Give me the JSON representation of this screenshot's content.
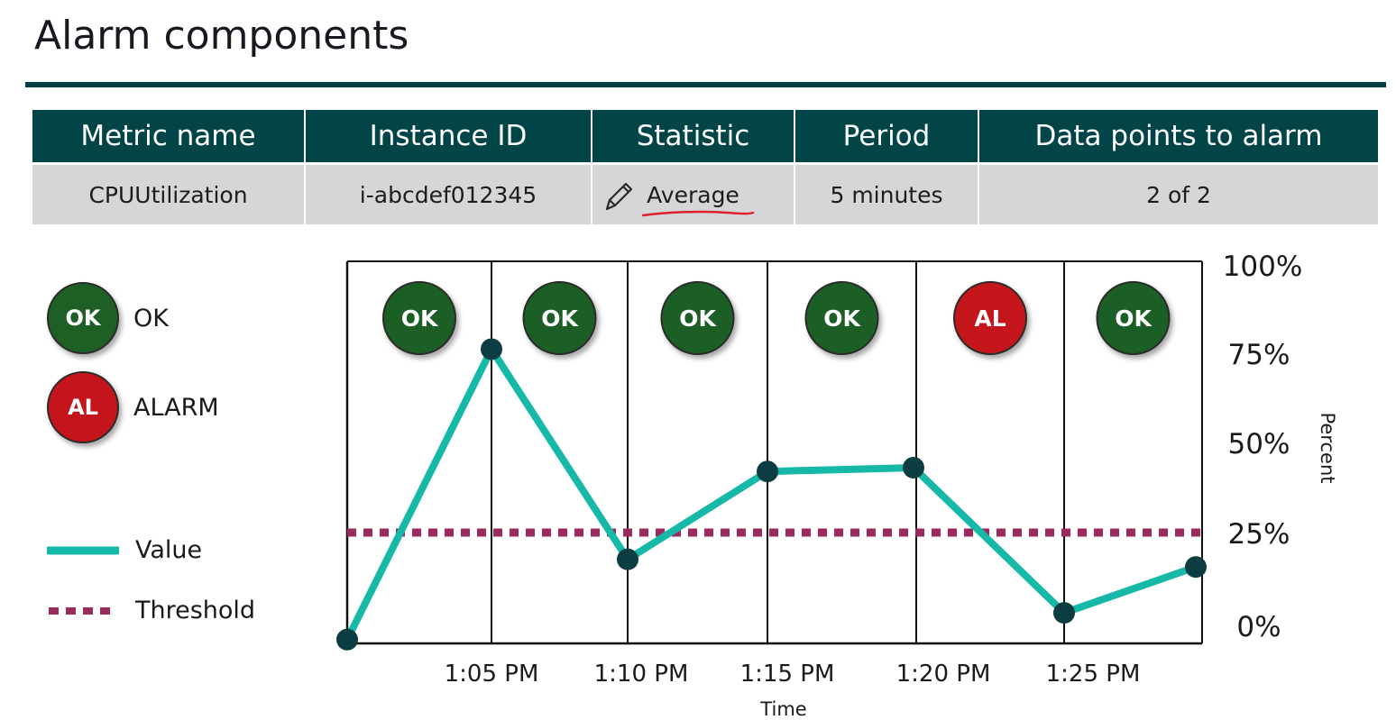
{
  "page": {
    "title": "Alarm components"
  },
  "params_table": {
    "headers": [
      "Metric name",
      "Instance ID",
      "Statistic",
      "Period",
      "Data points to alarm"
    ],
    "values": {
      "metric_name": "CPUUtilization",
      "instance_id": "i-abcdef012345",
      "statistic": "Average",
      "period": "5 minutes",
      "datapoints": "2 of 2"
    }
  },
  "legend": {
    "ok": {
      "badge": "OK",
      "label": "OK"
    },
    "alarm": {
      "badge": "AL",
      "label": "ALARM"
    },
    "value": {
      "label": "Value"
    },
    "threshold": {
      "label": "Threshold"
    }
  },
  "colors": {
    "header_bg": "#024549",
    "value_line": "#16b8a8",
    "threshold_line": "#9b2a5e",
    "ok_green": "#1e5f26",
    "alarm_red": "#c5151c",
    "point": "#0c3d42"
  },
  "icons": {
    "statistic_edit": "pencil-icon"
  },
  "chart_data": {
    "type": "line",
    "xlabel": "Time",
    "ylabel": "Percent",
    "ylim": [
      0,
      100
    ],
    "y_ticks": [
      "0%",
      "25%",
      "50%",
      "75%",
      "100%"
    ],
    "x_ticks": [
      "1:05 PM",
      "1:10 PM",
      "1:15 PM",
      "1:20 PM",
      "1:25 PM"
    ],
    "series": [
      {
        "name": "Value",
        "points": [
          {
            "x": "1:00 PM",
            "y": 1
          },
          {
            "x": "1:05 PM",
            "y": 77
          },
          {
            "x": "1:10 PM",
            "y": 22
          },
          {
            "x": "1:15 PM",
            "y": 45
          },
          {
            "x": "1:20 PM",
            "y": 46
          },
          {
            "x": "1:25 PM",
            "y": 8
          },
          {
            "x": "1:30 PM",
            "y": 20
          }
        ]
      }
    ],
    "threshold": {
      "name": "Threshold",
      "value": 29
    },
    "period_states": [
      "OK",
      "OK",
      "OK",
      "OK",
      "AL",
      "OK"
    ]
  }
}
